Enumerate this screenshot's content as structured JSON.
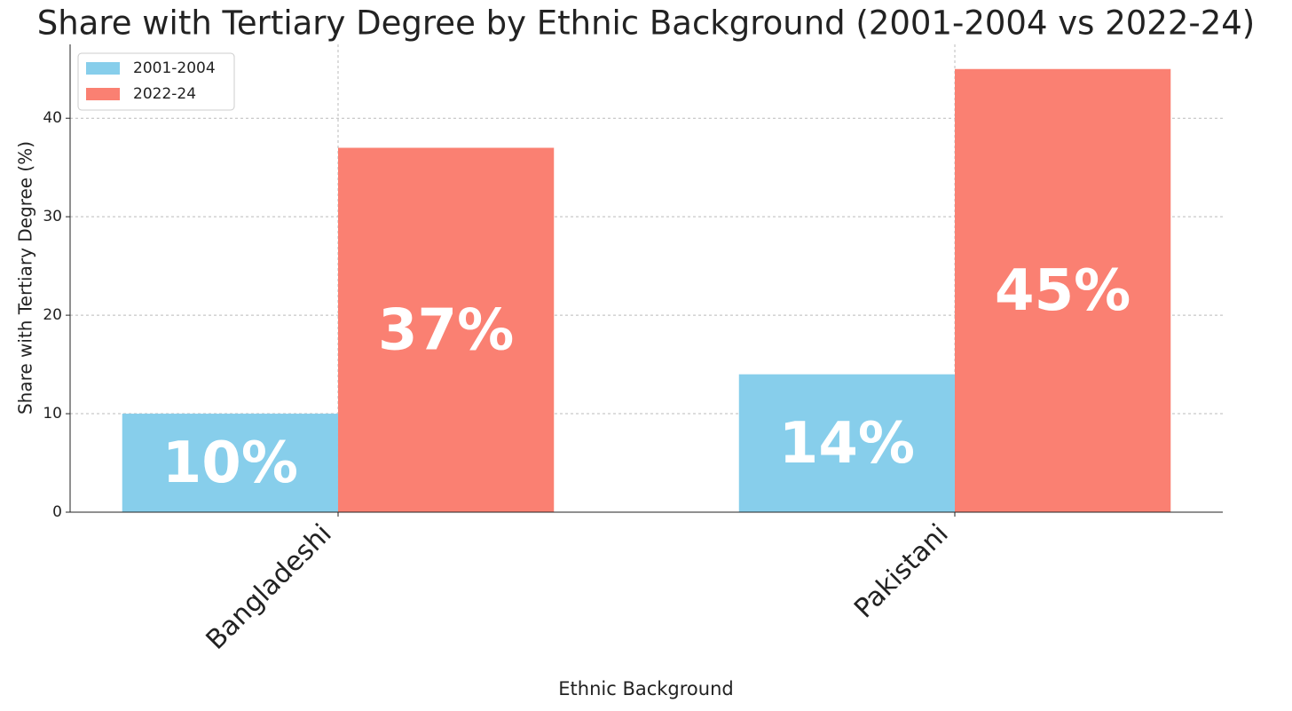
{
  "chart_data": {
    "type": "bar",
    "title": "Share with Tertiary Degree by Ethnic Background (2001-2004 vs 2022-24)",
    "x_label": "Ethnic Background",
    "y_label": "Share with Tertiary Degree (%)",
    "categories": [
      "Bangladeshi",
      "Pakistani"
    ],
    "series": [
      {
        "name": "2001-2004",
        "color": "#87ceeb",
        "values": [
          10,
          14
        ],
        "value_labels": [
          "10%",
          "14%"
        ]
      },
      {
        "name": "2022-24",
        "color": "#fa8072",
        "values": [
          37,
          45
        ],
        "value_labels": [
          "37%",
          "45%"
        ]
      }
    ],
    "ylim": [
      0,
      47.5
    ],
    "yticks": [
      0,
      10,
      20,
      30,
      40
    ],
    "grid": true,
    "legend": "upper-left"
  }
}
